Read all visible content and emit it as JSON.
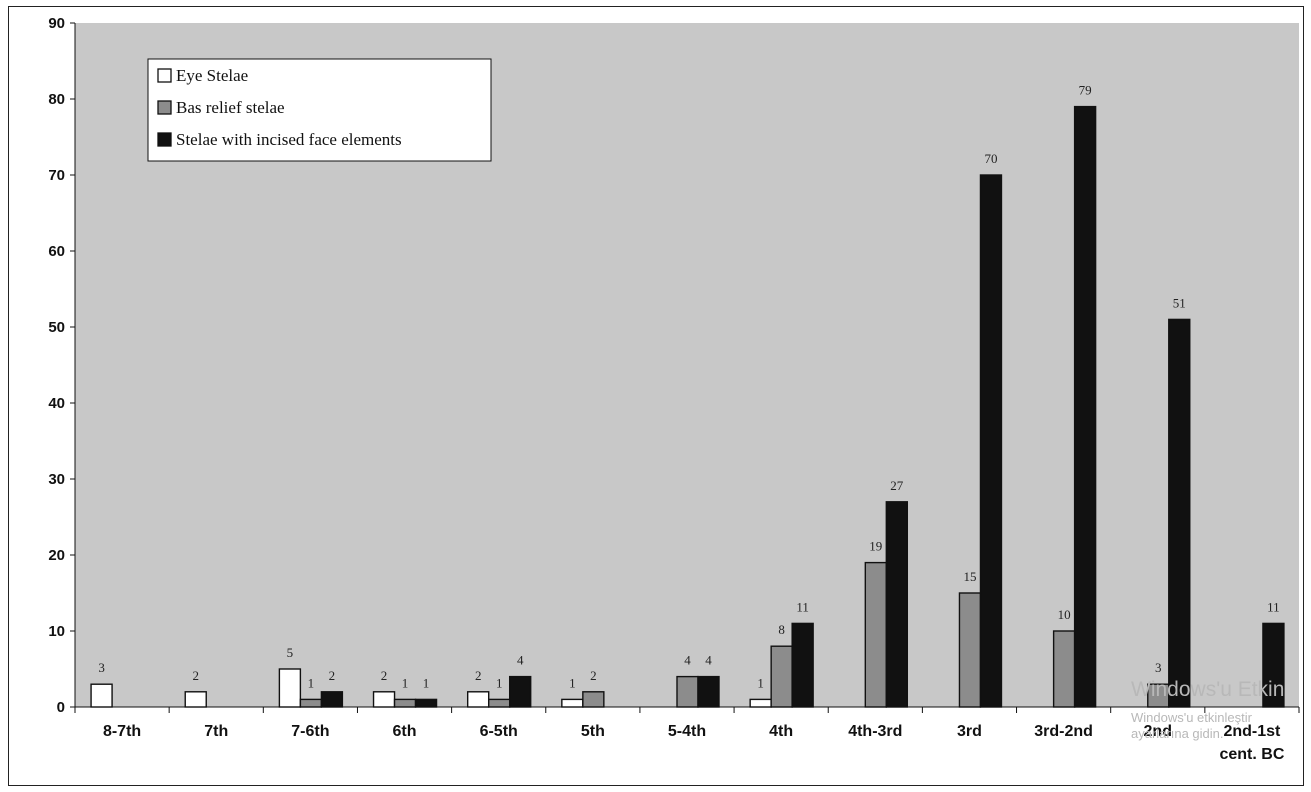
{
  "chart_data": {
    "type": "bar",
    "categories": [
      "8-7th",
      "7th",
      "7-6th",
      "6th",
      "6-5th",
      "5th",
      "5-4th",
      "4th",
      "4th-3rd",
      "3rd",
      "3rd-2nd",
      "2nd",
      "2nd-1st"
    ],
    "x_suffix": "cent. BC",
    "series": [
      {
        "name": "Eye Stelae",
        "color": "#ffffff",
        "values": [
          3,
          2,
          5,
          2,
          2,
          1,
          null,
          1,
          null,
          null,
          null,
          null,
          null
        ]
      },
      {
        "name": "Bas relief stelae",
        "color": "#8c8c8c",
        "values": [
          null,
          null,
          1,
          1,
          1,
          2,
          4,
          8,
          19,
          15,
          10,
          3,
          null
        ]
      },
      {
        "name": "Stelae with incised face elements",
        "color": "#111111",
        "values": [
          null,
          null,
          2,
          1,
          4,
          null,
          4,
          11,
          27,
          70,
          79,
          51,
          11
        ]
      }
    ],
    "ylim": [
      0,
      90
    ],
    "yticks": [
      0,
      10,
      20,
      30,
      40,
      50,
      60,
      70,
      80,
      90
    ],
    "plot_background": "#c8c8c8",
    "grid": false,
    "legend_position": "top-left"
  },
  "watermark": {
    "line1": "Windows'u Etkin",
    "line2": "Windows'u etkinleştir",
    "line3": "ayarlarına gidin."
  }
}
